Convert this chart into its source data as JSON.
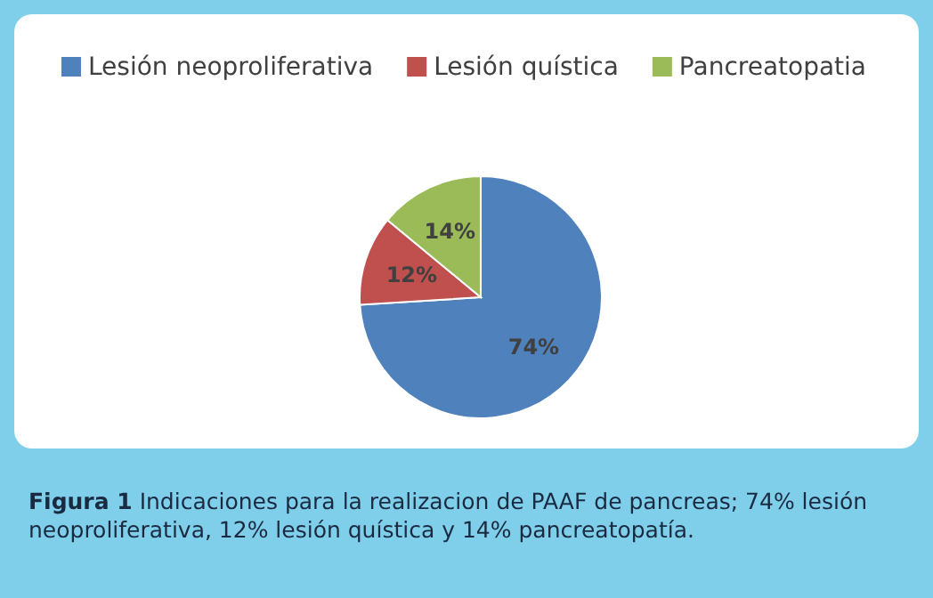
{
  "chart_data": {
    "type": "pie",
    "categories": [
      "Lesión neoproliferativa",
      "Lesión quística",
      "Pancreatopatia"
    ],
    "values": [
      74,
      12,
      14
    ],
    "colors": [
      "#4f81bd",
      "#c0504d",
      "#9bbb59"
    ],
    "value_labels": [
      "74%",
      "12%",
      "14%"
    ],
    "legend": "top",
    "title": "Figura 1",
    "subtitle": "Indicaciones para la realizacion de PAAF de pancreas; 74% lesión neoproliferativa, 12% lesión quística y 14% pancreatopatía."
  }
}
